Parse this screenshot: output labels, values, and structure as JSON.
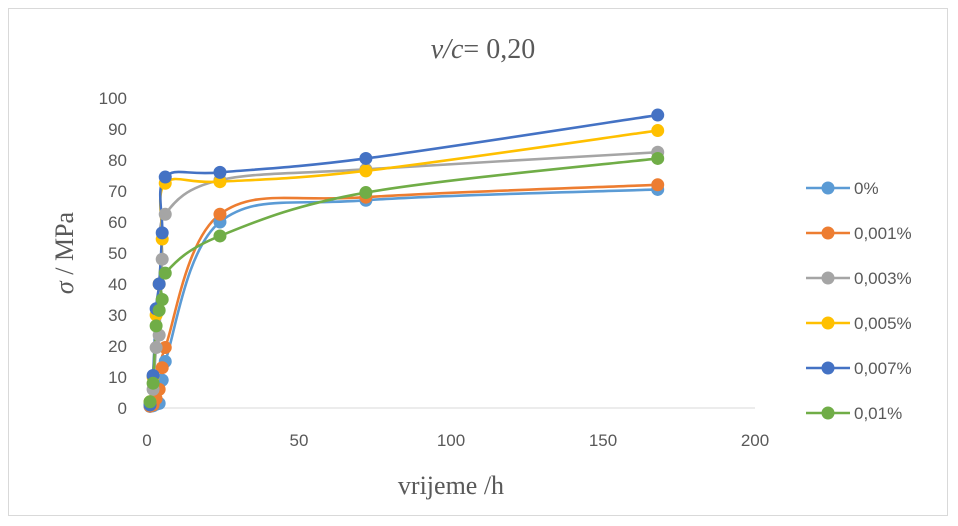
{
  "chart_data": {
    "type": "scatter",
    "title_italic": "v/c",
    "title_rest": "= 0,20",
    "ylabel_symbol": "σ",
    "ylabel_rest": " / MPa",
    "xlabel": "vrijeme /h",
    "xlim": [
      0,
      200
    ],
    "ylim": [
      0,
      100
    ],
    "xticks": [
      0,
      50,
      100,
      150,
      200
    ],
    "xtick_labels": [
      "0",
      "50",
      "100",
      "150",
      "200"
    ],
    "yticks": [
      0,
      10,
      20,
      30,
      40,
      50,
      60,
      70,
      80,
      90,
      100
    ],
    "ytick_labels": [
      "0",
      "10",
      "20",
      "30",
      "40",
      "50",
      "60",
      "70",
      "80",
      "90",
      "100"
    ],
    "grid": false,
    "legend_position": "right",
    "smooth_lines": true,
    "series": [
      {
        "name": "0%",
        "color": "#5B9BD5",
        "points": [
          [
            1,
            0.5
          ],
          [
            2,
            0.7
          ],
          [
            3,
            1.2
          ],
          [
            4,
            1.5
          ],
          [
            5,
            9
          ],
          [
            6,
            15
          ],
          [
            24,
            60
          ],
          [
            72,
            67
          ],
          [
            168,
            70.5
          ]
        ]
      },
      {
        "name": "0,001%",
        "color": "#ED7D31",
        "points": [
          [
            1,
            0.6
          ],
          [
            2,
            1
          ],
          [
            3,
            3
          ],
          [
            4,
            6
          ],
          [
            5,
            13
          ],
          [
            6,
            19.5
          ],
          [
            24,
            62.5
          ],
          [
            72,
            68
          ],
          [
            168,
            72
          ]
        ]
      },
      {
        "name": "0,003%",
        "color": "#A5A5A5",
        "points": [
          [
            1,
            1
          ],
          [
            2,
            6
          ],
          [
            3,
            19.5
          ],
          [
            4,
            23.5
          ],
          [
            5,
            48
          ],
          [
            6,
            62.5
          ],
          [
            24,
            73.5
          ],
          [
            72,
            77
          ],
          [
            168,
            82.5
          ]
        ]
      },
      {
        "name": "0,005%",
        "color": "#FFC000",
        "points": [
          [
            1,
            2
          ],
          [
            2,
            10
          ],
          [
            3,
            30
          ],
          [
            4,
            40
          ],
          [
            5,
            54.5
          ],
          [
            6,
            72.5
          ],
          [
            24,
            73
          ],
          [
            72,
            76.5
          ],
          [
            168,
            89.5
          ]
        ]
      },
      {
        "name": "0,007%",
        "color": "#4472C4",
        "points": [
          [
            1,
            1
          ],
          [
            2,
            10.5
          ],
          [
            3,
            32
          ],
          [
            4,
            40
          ],
          [
            5,
            56.5
          ],
          [
            6,
            74.5
          ],
          [
            24,
            76
          ],
          [
            72,
            80.5
          ],
          [
            168,
            94.5
          ]
        ]
      },
      {
        "name": "0,01%",
        "color": "#70AD47",
        "points": [
          [
            1,
            2
          ],
          [
            2,
            8
          ],
          [
            3,
            26.5
          ],
          [
            4,
            31.5
          ],
          [
            5,
            35
          ],
          [
            6,
            43.5
          ],
          [
            24,
            55.5
          ],
          [
            72,
            69.5
          ],
          [
            168,
            80.5
          ]
        ]
      }
    ]
  }
}
